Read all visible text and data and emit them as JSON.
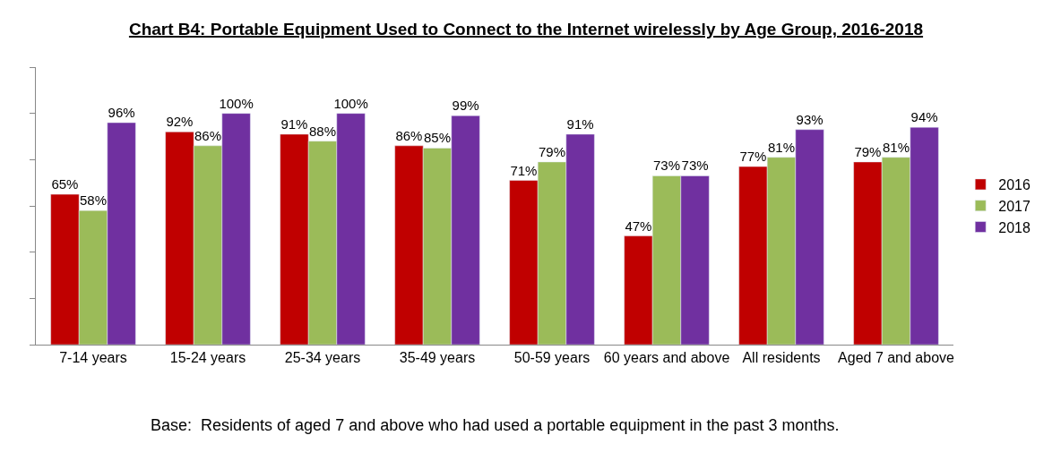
{
  "chart_data": {
    "type": "bar",
    "title": "Chart B4: Portable Equipment Used to Connect to the Internet wirelessly by Age Group, 2016-2018",
    "categories": [
      "7-14 years",
      "15-24 years",
      "25-34 years",
      "35-49 years",
      "50-59 years",
      "60 years and above",
      "All residents",
      "Aged 7 and above"
    ],
    "series": [
      {
        "name": "2016",
        "color": "#c00000",
        "values": [
          65,
          92,
          91,
          86,
          71,
          47,
          77,
          79
        ],
        "value_labels": [
          "65%",
          "92%",
          "91%",
          "86%",
          "71%",
          "47%",
          "77%",
          "79%"
        ]
      },
      {
        "name": "2017",
        "color": "#9bbb59",
        "values": [
          58,
          86,
          88,
          85,
          79,
          73,
          81,
          81
        ],
        "value_labels": [
          "58%",
          "86%",
          "88%",
          "85%",
          "79%",
          "73%",
          "81%",
          "81%"
        ]
      },
      {
        "name": "2018",
        "color": "#7030a0",
        "values": [
          96,
          100,
          100,
          99,
          91,
          73,
          93,
          94
        ],
        "value_labels": [
          "96%",
          "100%",
          "100%",
          "99%",
          "91%",
          "73%",
          "93%",
          "94%"
        ]
      }
    ],
    "ylim": [
      0,
      120
    ],
    "yticks": [
      {
        "value": 0,
        "label": null
      },
      {
        "value": 20,
        "label": null
      },
      {
        "value": 40,
        "label": null
      },
      {
        "value": 60,
        "label": null
      },
      {
        "value": 80,
        "label": null
      },
      {
        "value": 100,
        "label": null
      },
      {
        "value": 120,
        "label": null
      }
    ],
    "tick_labels": "x",
    "legend": "right",
    "annotations": [
      "Base:  Residents of aged 7 and above who had used a portable equipment in the past 3 months."
    ]
  }
}
